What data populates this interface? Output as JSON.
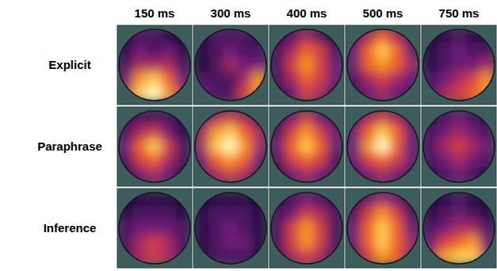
{
  "chart_data": {
    "type": "topomap",
    "columns": [
      "150 ms",
      "300 ms",
      "400 ms",
      "500 ms",
      "750 ms"
    ],
    "rows": [
      "Explicit",
      "Paraphrase",
      "Inference"
    ],
    "cells": [
      [
        [
          [
            0.1,
            0.3,
            0.3,
            0.2,
            0.1
          ],
          [
            0.2,
            0.4,
            0.3,
            0.4,
            0.2
          ],
          [
            0.3,
            0.5,
            0.5,
            0.5,
            0.3
          ],
          [
            0.4,
            0.8,
            0.9,
            0.7,
            0.4
          ],
          [
            0.5,
            0.9,
            1.0,
            0.8,
            0.5
          ]
        ],
        [
          [
            0.2,
            0.3,
            0.3,
            0.3,
            0.2
          ],
          [
            0.2,
            0.3,
            0.4,
            0.3,
            0.3
          ],
          [
            0.1,
            0.3,
            0.5,
            0.4,
            0.4
          ],
          [
            0.3,
            0.3,
            0.3,
            0.5,
            0.8
          ],
          [
            0.4,
            0.3,
            0.3,
            0.6,
            0.8
          ]
        ],
        [
          [
            0.2,
            0.3,
            0.5,
            0.3,
            0.2
          ],
          [
            0.3,
            0.5,
            0.7,
            0.6,
            0.3
          ],
          [
            0.3,
            0.6,
            0.8,
            0.6,
            0.4
          ],
          [
            0.3,
            0.5,
            0.7,
            0.6,
            0.4
          ],
          [
            0.2,
            0.4,
            0.6,
            0.5,
            0.3
          ]
        ],
        [
          [
            0.3,
            0.5,
            0.7,
            0.5,
            0.3
          ],
          [
            0.4,
            0.7,
            0.9,
            0.7,
            0.4
          ],
          [
            0.4,
            0.7,
            0.8,
            0.7,
            0.5
          ],
          [
            0.3,
            0.5,
            0.6,
            0.5,
            0.4
          ],
          [
            0.3,
            0.4,
            0.5,
            0.4,
            0.3
          ]
        ],
        [
          [
            0.1,
            0.2,
            0.3,
            0.2,
            0.2
          ],
          [
            0.2,
            0.3,
            0.4,
            0.3,
            0.3
          ],
          [
            0.2,
            0.3,
            0.4,
            0.4,
            0.5
          ],
          [
            0.3,
            0.4,
            0.5,
            0.6,
            0.8
          ],
          [
            0.3,
            0.5,
            0.6,
            0.7,
            0.8
          ]
        ]
      ],
      [
        [
          [
            0.2,
            0.3,
            0.3,
            0.3,
            0.2
          ],
          [
            0.3,
            0.5,
            0.6,
            0.4,
            0.2
          ],
          [
            0.4,
            0.7,
            0.9,
            0.6,
            0.3
          ],
          [
            0.3,
            0.6,
            0.7,
            0.5,
            0.3
          ],
          [
            0.2,
            0.4,
            0.5,
            0.4,
            0.2
          ]
        ],
        [
          [
            0.3,
            0.5,
            0.6,
            0.5,
            0.3
          ],
          [
            0.5,
            0.8,
            0.9,
            0.7,
            0.5
          ],
          [
            0.5,
            0.9,
            1.0,
            0.8,
            0.5
          ],
          [
            0.4,
            0.7,
            0.8,
            0.7,
            0.4
          ],
          [
            0.3,
            0.5,
            0.6,
            0.5,
            0.3
          ]
        ],
        [
          [
            0.3,
            0.4,
            0.6,
            0.4,
            0.3
          ],
          [
            0.3,
            0.6,
            0.8,
            0.6,
            0.4
          ],
          [
            0.4,
            0.7,
            0.9,
            0.7,
            0.4
          ],
          [
            0.3,
            0.6,
            0.7,
            0.6,
            0.3
          ],
          [
            0.2,
            0.4,
            0.5,
            0.4,
            0.3
          ]
        ],
        [
          [
            0.3,
            0.5,
            0.6,
            0.5,
            0.3
          ],
          [
            0.4,
            0.7,
            0.9,
            0.7,
            0.4
          ],
          [
            0.4,
            0.8,
            1.0,
            0.7,
            0.4
          ],
          [
            0.4,
            0.6,
            0.7,
            0.6,
            0.4
          ],
          [
            0.3,
            0.4,
            0.5,
            0.4,
            0.3
          ]
        ],
        [
          [
            0.2,
            0.3,
            0.4,
            0.3,
            0.2
          ],
          [
            0.3,
            0.4,
            0.5,
            0.4,
            0.3
          ],
          [
            0.3,
            0.5,
            0.6,
            0.5,
            0.4
          ],
          [
            0.3,
            0.4,
            0.5,
            0.4,
            0.3
          ],
          [
            0.2,
            0.3,
            0.4,
            0.3,
            0.2
          ]
        ]
      ],
      [
        [
          [
            0.1,
            0.2,
            0.2,
            0.2,
            0.1
          ],
          [
            0.2,
            0.3,
            0.3,
            0.3,
            0.2
          ],
          [
            0.3,
            0.4,
            0.4,
            0.4,
            0.3
          ],
          [
            0.3,
            0.5,
            0.6,
            0.5,
            0.3
          ],
          [
            0.3,
            0.5,
            0.6,
            0.5,
            0.3
          ]
        ],
        [
          [
            0.1,
            0.2,
            0.2,
            0.2,
            0.1
          ],
          [
            0.2,
            0.3,
            0.3,
            0.3,
            0.2
          ],
          [
            0.2,
            0.3,
            0.4,
            0.3,
            0.2
          ],
          [
            0.2,
            0.3,
            0.4,
            0.4,
            0.2
          ],
          [
            0.2,
            0.3,
            0.3,
            0.3,
            0.2
          ]
        ],
        [
          [
            0.2,
            0.3,
            0.4,
            0.3,
            0.2
          ],
          [
            0.3,
            0.4,
            0.6,
            0.5,
            0.3
          ],
          [
            0.3,
            0.6,
            0.8,
            0.6,
            0.3
          ],
          [
            0.3,
            0.6,
            0.8,
            0.6,
            0.3
          ],
          [
            0.3,
            0.5,
            0.6,
            0.5,
            0.3
          ]
        ],
        [
          [
            0.2,
            0.4,
            0.5,
            0.4,
            0.2
          ],
          [
            0.3,
            0.6,
            0.8,
            0.6,
            0.3
          ],
          [
            0.4,
            0.7,
            0.9,
            0.7,
            0.4
          ],
          [
            0.4,
            0.7,
            0.9,
            0.7,
            0.5
          ],
          [
            0.3,
            0.6,
            0.8,
            0.7,
            0.4
          ]
        ],
        [
          [
            0.1,
            0.2,
            0.3,
            0.2,
            0.1
          ],
          [
            0.2,
            0.3,
            0.4,
            0.3,
            0.2
          ],
          [
            0.3,
            0.4,
            0.5,
            0.5,
            0.3
          ],
          [
            0.4,
            0.6,
            0.7,
            0.8,
            0.4
          ],
          [
            0.5,
            0.8,
            0.9,
            0.9,
            0.5
          ]
        ]
      ]
    ]
  }
}
